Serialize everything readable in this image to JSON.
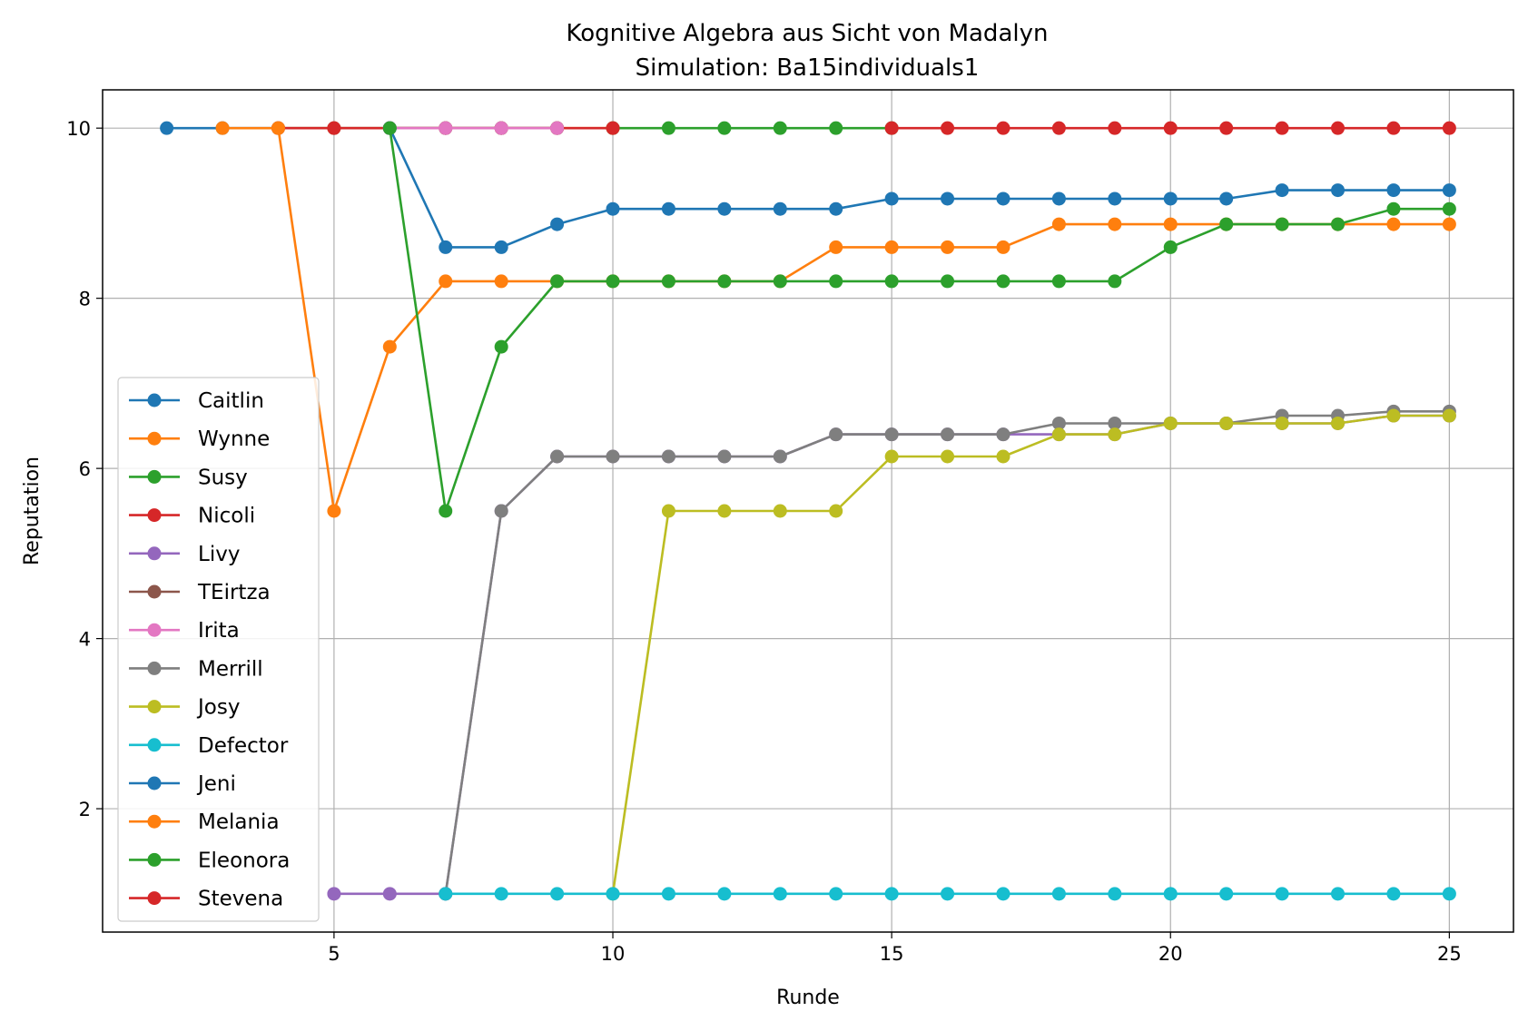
{
  "chart_data": {
    "type": "line",
    "title": "Kognitive Algebra aus Sicht von Madalyn",
    "subtitle": "Simulation: Ba15individuals1",
    "xlabel": "Runde",
    "ylabel": "Reputation",
    "xlim": [
      0.85,
      26.15
    ],
    "ylim": [
      0.55,
      10.45
    ],
    "xticks": [
      5,
      10,
      15,
      20,
      25
    ],
    "yticks": [
      2,
      4,
      6,
      8,
      10
    ],
    "xtick_labels": [
      "5",
      "10",
      "15",
      "20",
      "25"
    ],
    "ytick_labels": [
      "2",
      "4",
      "6",
      "8",
      "10"
    ],
    "grid": true,
    "legend_position": "center-left",
    "series": [
      {
        "name": "Caitlin",
        "color": "#1f77b4",
        "points": [
          [
            2,
            10
          ],
          [
            3,
            10
          ],
          [
            4,
            10
          ],
          [
            5,
            10
          ],
          [
            6,
            10
          ],
          [
            7,
            10
          ],
          [
            8,
            10
          ],
          [
            9,
            10
          ]
        ]
      },
      {
        "name": "Wynne",
        "color": "#ff7f0e",
        "points": [
          [
            3,
            10
          ],
          [
            4,
            10
          ],
          [
            5,
            10
          ],
          [
            6,
            10
          ],
          [
            7,
            10
          ],
          [
            8,
            10
          ],
          [
            9,
            10
          ],
          [
            10,
            10
          ]
        ]
      },
      {
        "name": "Susy",
        "color": "#2ca02c",
        "points": [
          [
            10,
            10
          ],
          [
            11,
            10
          ],
          [
            12,
            10
          ],
          [
            13,
            10
          ],
          [
            14,
            10
          ],
          [
            15,
            10
          ]
        ]
      },
      {
        "name": "Nicoli",
        "color": "#d62728",
        "points": [
          [
            4,
            10
          ],
          [
            5,
            10
          ],
          [
            6,
            10
          ],
          [
            7,
            10
          ],
          [
            8,
            10
          ],
          [
            9,
            10
          ],
          [
            10,
            10
          ]
        ]
      },
      {
        "name": "Livy",
        "color": "#9467bd",
        "points": [
          [
            5,
            1
          ],
          [
            6,
            1
          ],
          [
            7,
            1
          ],
          [
            8,
            5.5
          ],
          [
            9,
            6.14
          ],
          [
            10,
            6.14
          ],
          [
            11,
            6.14
          ],
          [
            12,
            6.14
          ],
          [
            13,
            6.14
          ],
          [
            14,
            6.4
          ],
          [
            15,
            6.4
          ],
          [
            16,
            6.4
          ],
          [
            17,
            6.4
          ],
          [
            18,
            6.4
          ],
          [
            19,
            6.4
          ],
          [
            20,
            6.53
          ],
          [
            21,
            6.53
          ],
          [
            22,
            6.53
          ],
          [
            23,
            6.53
          ],
          [
            24,
            6.62
          ],
          [
            25,
            6.62
          ]
        ]
      },
      {
        "name": "TEirtza",
        "color": "#8c564b",
        "points": [
          [
            6,
            10
          ],
          [
            7,
            10
          ],
          [
            8,
            10
          ],
          [
            9,
            10
          ]
        ]
      },
      {
        "name": "Irita",
        "color": "#e377c2",
        "points": [
          [
            6,
            10
          ],
          [
            7,
            10
          ],
          [
            8,
            10
          ],
          [
            9,
            10
          ]
        ]
      },
      {
        "name": "Merrill",
        "color": "#7f7f7f",
        "points": [
          [
            7,
            1
          ],
          [
            8,
            5.5
          ],
          [
            9,
            6.14
          ],
          [
            10,
            6.14
          ],
          [
            11,
            6.14
          ],
          [
            12,
            6.14
          ],
          [
            13,
            6.14
          ],
          [
            14,
            6.4
          ],
          [
            15,
            6.4
          ],
          [
            16,
            6.4
          ],
          [
            17,
            6.4
          ],
          [
            18,
            6.53
          ],
          [
            19,
            6.53
          ],
          [
            20,
            6.53
          ],
          [
            21,
            6.53
          ],
          [
            22,
            6.62
          ],
          [
            23,
            6.62
          ],
          [
            24,
            6.67
          ],
          [
            25,
            6.67
          ]
        ]
      },
      {
        "name": "Josy",
        "color": "#bcbd22",
        "points": [
          [
            10,
            1
          ],
          [
            11,
            5.5
          ],
          [
            12,
            5.5
          ],
          [
            13,
            5.5
          ],
          [
            14,
            5.5
          ],
          [
            15,
            6.14
          ],
          [
            16,
            6.14
          ],
          [
            17,
            6.14
          ],
          [
            18,
            6.4
          ],
          [
            19,
            6.4
          ],
          [
            20,
            6.53
          ],
          [
            21,
            6.53
          ],
          [
            22,
            6.53
          ],
          [
            23,
            6.53
          ],
          [
            24,
            6.62
          ],
          [
            25,
            6.62
          ]
        ]
      },
      {
        "name": "Defector",
        "color": "#17becf",
        "points": [
          [
            7,
            1
          ],
          [
            8,
            1
          ],
          [
            9,
            1
          ],
          [
            10,
            1
          ],
          [
            11,
            1
          ],
          [
            12,
            1
          ],
          [
            13,
            1
          ],
          [
            14,
            1
          ],
          [
            15,
            1
          ],
          [
            16,
            1
          ],
          [
            17,
            1
          ],
          [
            18,
            1
          ],
          [
            19,
            1
          ],
          [
            20,
            1
          ],
          [
            21,
            1
          ],
          [
            22,
            1
          ],
          [
            23,
            1
          ],
          [
            24,
            1
          ],
          [
            25,
            1
          ]
        ]
      },
      {
        "name": "Jeni",
        "color": "#1f77b4",
        "points": [
          [
            6,
            10
          ],
          [
            7,
            8.6
          ],
          [
            8,
            8.6
          ],
          [
            9,
            8.87
          ],
          [
            10,
            9.05
          ],
          [
            11,
            9.05
          ],
          [
            12,
            9.05
          ],
          [
            13,
            9.05
          ],
          [
            14,
            9.05
          ],
          [
            15,
            9.17
          ],
          [
            16,
            9.17
          ],
          [
            17,
            9.17
          ],
          [
            18,
            9.17
          ],
          [
            19,
            9.17
          ],
          [
            20,
            9.17
          ],
          [
            21,
            9.17
          ],
          [
            22,
            9.27
          ],
          [
            23,
            9.27
          ],
          [
            24,
            9.27
          ],
          [
            25,
            9.27
          ]
        ]
      },
      {
        "name": "Melania",
        "color": "#ff7f0e",
        "points": [
          [
            4,
            10
          ],
          [
            5,
            5.5
          ],
          [
            6,
            7.43
          ],
          [
            7,
            8.2
          ],
          [
            8,
            8.2
          ],
          [
            9,
            8.2
          ],
          [
            10,
            8.2
          ],
          [
            11,
            8.2
          ],
          [
            12,
            8.2
          ],
          [
            13,
            8.2
          ],
          [
            14,
            8.6
          ],
          [
            15,
            8.6
          ],
          [
            16,
            8.6
          ],
          [
            17,
            8.6
          ],
          [
            18,
            8.87
          ],
          [
            19,
            8.87
          ],
          [
            20,
            8.87
          ],
          [
            21,
            8.87
          ],
          [
            22,
            8.87
          ],
          [
            23,
            8.87
          ],
          [
            24,
            8.87
          ],
          [
            25,
            8.87
          ]
        ]
      },
      {
        "name": "Eleonora",
        "color": "#2ca02c",
        "points": [
          [
            6,
            10
          ],
          [
            7,
            5.5
          ],
          [
            8,
            7.43
          ],
          [
            9,
            8.2
          ],
          [
            10,
            8.2
          ],
          [
            11,
            8.2
          ],
          [
            12,
            8.2
          ],
          [
            13,
            8.2
          ],
          [
            14,
            8.2
          ],
          [
            15,
            8.2
          ],
          [
            16,
            8.2
          ],
          [
            17,
            8.2
          ],
          [
            18,
            8.2
          ],
          [
            19,
            8.2
          ],
          [
            20,
            8.6
          ],
          [
            21,
            8.87
          ],
          [
            22,
            8.87
          ],
          [
            23,
            8.87
          ],
          [
            24,
            9.05
          ],
          [
            25,
            9.05
          ]
        ]
      },
      {
        "name": "Stevena",
        "color": "#d62728",
        "points": [
          [
            15,
            10
          ],
          [
            16,
            10
          ],
          [
            17,
            10
          ],
          [
            18,
            10
          ],
          [
            19,
            10
          ],
          [
            20,
            10
          ],
          [
            21,
            10
          ],
          [
            22,
            10
          ],
          [
            23,
            10
          ],
          [
            24,
            10
          ],
          [
            25,
            10
          ]
        ]
      }
    ]
  }
}
